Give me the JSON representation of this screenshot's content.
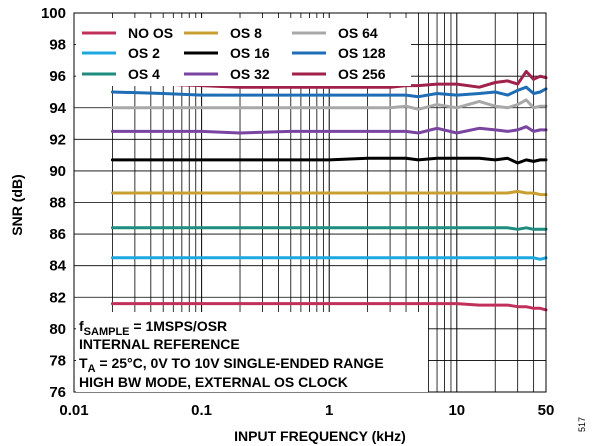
{
  "chart_data": {
    "type": "line",
    "xscale": "log",
    "xlim": [
      0.01,
      50
    ],
    "ylim": [
      76,
      100
    ],
    "xticks": [
      0.01,
      0.1,
      1,
      10,
      50
    ],
    "xtick_labels": [
      "0.01",
      "0.1",
      "1",
      "10",
      "50"
    ],
    "yticks": [
      76,
      78,
      80,
      82,
      84,
      86,
      88,
      90,
      92,
      94,
      96,
      98,
      100
    ],
    "ytick_labels": [
      "76",
      "78",
      "80",
      "82",
      "84",
      "86",
      "88",
      "90",
      "92",
      "94",
      "96",
      "98",
      "100"
    ],
    "xlabel": "INPUT FREQUENCY (kHz)",
    "ylabel": "SNR (dB)",
    "grid": "log-minor vertical, major horizontal",
    "legend_position": "top-left",
    "x": [
      0.02,
      0.05,
      0.1,
      0.2,
      0.5,
      1,
      2,
      3,
      4,
      5,
      7,
      10,
      15,
      20,
      25,
      30,
      35,
      40,
      45,
      50
    ],
    "series": [
      {
        "name": "NO OS",
        "color": "#c0305a",
        "values": [
          81.6,
          81.6,
          81.6,
          81.6,
          81.6,
          81.6,
          81.6,
          81.6,
          81.6,
          81.6,
          81.6,
          81.6,
          81.5,
          81.5,
          81.5,
          81.4,
          81.4,
          81.3,
          81.3,
          81.2
        ]
      },
      {
        "name": "OS 2",
        "color": "#1ca8e0",
        "values": [
          84.5,
          84.5,
          84.5,
          84.5,
          84.5,
          84.5,
          84.5,
          84.5,
          84.5,
          84.5,
          84.5,
          84.5,
          84.5,
          84.5,
          84.5,
          84.5,
          84.5,
          84.5,
          84.4,
          84.5
        ]
      },
      {
        "name": "OS 4",
        "color": "#1e8c7e",
        "values": [
          86.4,
          86.4,
          86.4,
          86.4,
          86.4,
          86.4,
          86.4,
          86.4,
          86.4,
          86.4,
          86.4,
          86.4,
          86.4,
          86.4,
          86.4,
          86.3,
          86.4,
          86.3,
          86.3,
          86.3
        ]
      },
      {
        "name": "OS 8",
        "color": "#c8a030",
        "values": [
          88.6,
          88.6,
          88.6,
          88.6,
          88.6,
          88.6,
          88.6,
          88.6,
          88.6,
          88.6,
          88.6,
          88.6,
          88.6,
          88.6,
          88.6,
          88.7,
          88.6,
          88.6,
          88.5,
          88.5
        ]
      },
      {
        "name": "OS 16",
        "color": "#000000",
        "values": [
          90.7,
          90.7,
          90.7,
          90.7,
          90.7,
          90.7,
          90.8,
          90.8,
          90.8,
          90.7,
          90.8,
          90.8,
          90.8,
          90.7,
          90.8,
          90.5,
          90.7,
          90.6,
          90.7,
          90.7
        ]
      },
      {
        "name": "OS 32",
        "color": "#7a45a0",
        "values": [
          92.5,
          92.5,
          92.5,
          92.4,
          92.5,
          92.5,
          92.5,
          92.5,
          92.5,
          92.4,
          92.7,
          92.4,
          92.7,
          92.6,
          92.5,
          92.6,
          92.8,
          92.5,
          92.6,
          92.6
        ]
      },
      {
        "name": "OS 64",
        "color": "#a8a8a8",
        "values": [
          94.0,
          94.0,
          94.0,
          94.0,
          94.0,
          94.0,
          94.0,
          94.0,
          94.1,
          93.9,
          94.2,
          94.0,
          94.4,
          94.1,
          94.0,
          94.2,
          94.5,
          94.0,
          94.1,
          94.1
        ]
      },
      {
        "name": "OS 128",
        "color": "#1f6db5",
        "values": [
          95.0,
          94.9,
          94.8,
          94.8,
          94.8,
          94.8,
          94.8,
          94.8,
          94.8,
          94.7,
          94.9,
          94.8,
          94.9,
          95.0,
          94.8,
          95.1,
          95.3,
          94.9,
          95.0,
          95.2
        ]
      },
      {
        "name": "OS 256",
        "color": "#a0224a",
        "values": [
          95.6,
          95.5,
          95.4,
          95.3,
          95.3,
          95.3,
          95.3,
          95.3,
          95.4,
          95.4,
          95.5,
          95.5,
          95.3,
          95.6,
          95.7,
          95.5,
          96.3,
          95.8,
          96.0,
          95.9
        ]
      }
    ]
  },
  "conditions": {
    "line1_main": "f",
    "line1_sub": "SAMPLE",
    "line1_rest": " = 1MSPS/OSR",
    "line2": "INTERNAL REFERENCE",
    "line3_main": "T",
    "line3_sub": "A",
    "line3_rest": " = 25°C, 0V TO 10V SINGLE-ENDED RANGE",
    "line4": "HIGH BW MODE, EXTERNAL OS CLOCK"
  },
  "figure_id": "517"
}
